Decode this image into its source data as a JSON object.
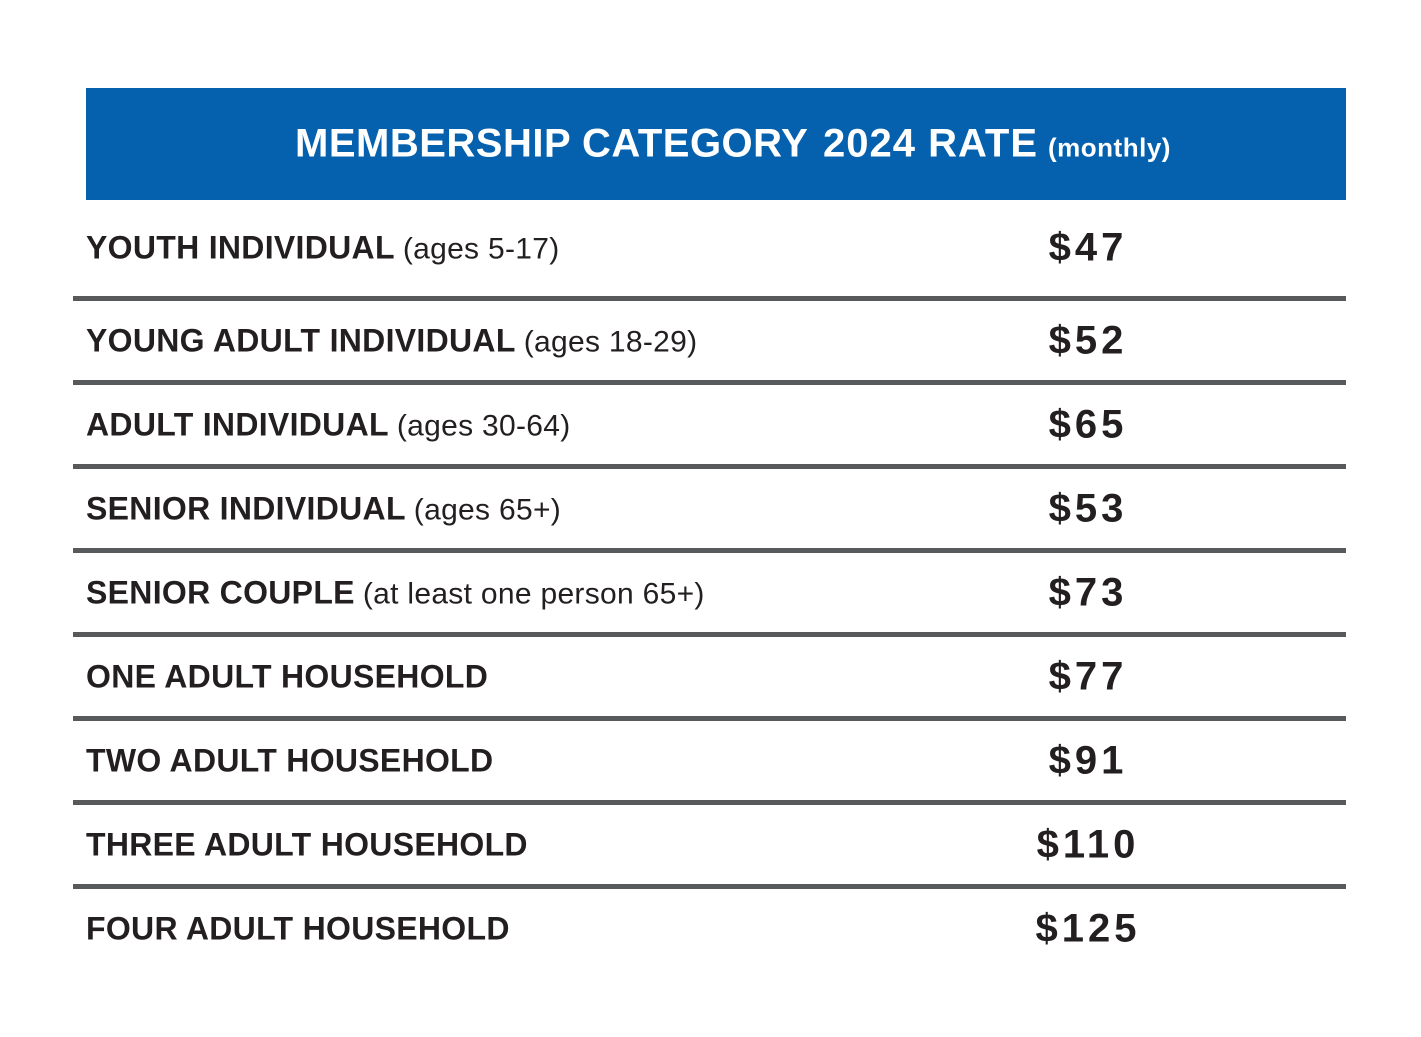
{
  "header": {
    "category_header": "MEMBERSHIP CATEGORY",
    "rate_header": "2024 RATE",
    "rate_qualifier": "(monthly)"
  },
  "colors": {
    "header_bg": "#0561AE",
    "header_text": "#FFFFFF",
    "separator": "#58595B",
    "body_text": "#231F20"
  },
  "chart_data": {
    "type": "table",
    "columns": [
      "MEMBERSHIP CATEGORY",
      "2024 RATE (monthly)"
    ],
    "rows": [
      {
        "category": "YOUTH INDIVIDUAL",
        "detail": "(ages 5-17)",
        "rate": "$47"
      },
      {
        "category": "YOUNG ADULT INDIVIDUAL",
        "detail": "(ages 18-29)",
        "rate": "$52"
      },
      {
        "category": "ADULT INDIVIDUAL",
        "detail": "(ages 30-64)",
        "rate": "$65"
      },
      {
        "category": "SENIOR INDIVIDUAL",
        "detail": "(ages 65+)",
        "rate": "$53"
      },
      {
        "category": "SENIOR COUPLE",
        "detail": "(at least one person 65+)",
        "rate": "$73"
      },
      {
        "category": "ONE ADULT HOUSEHOLD",
        "detail": "",
        "rate": "$77"
      },
      {
        "category": "TWO ADULT HOUSEHOLD",
        "detail": "",
        "rate": "$91"
      },
      {
        "category": "THREE ADULT HOUSEHOLD",
        "detail": "",
        "rate": "$110"
      },
      {
        "category": "FOUR ADULT HOUSEHOLD",
        "detail": "",
        "rate": "$125"
      }
    ]
  }
}
